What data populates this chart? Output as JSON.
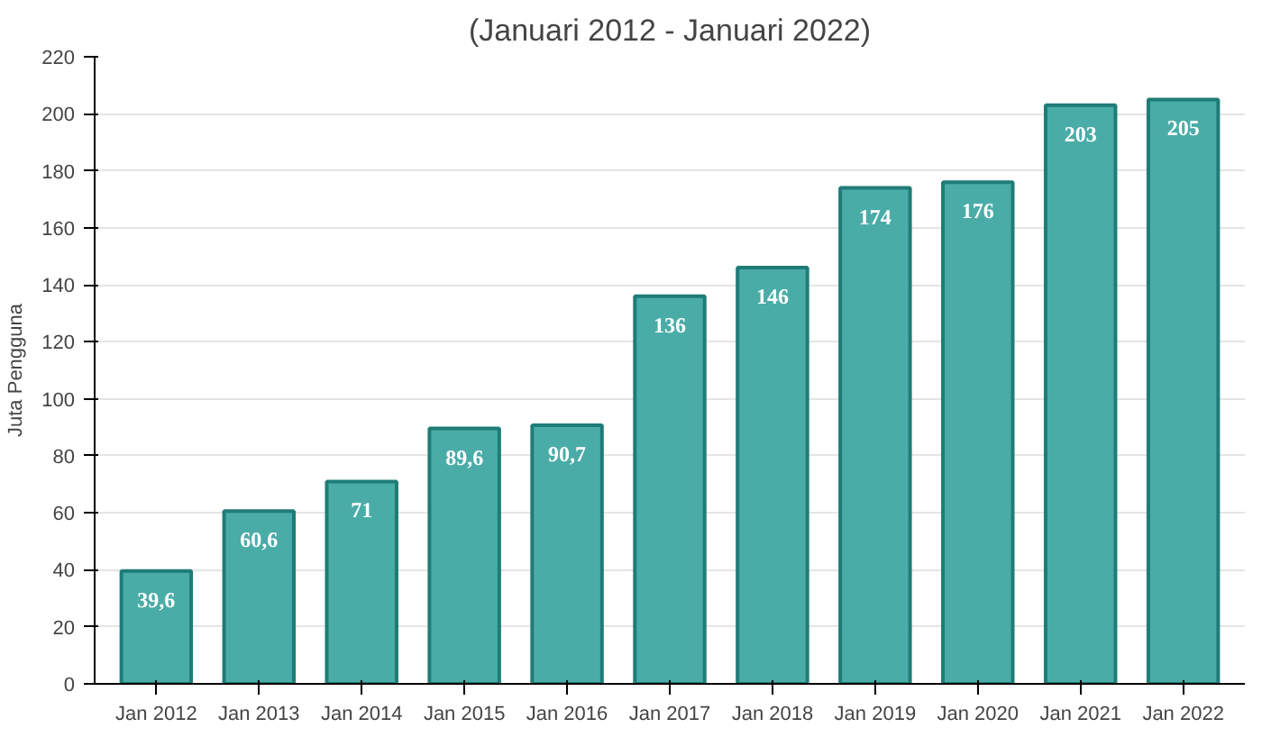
{
  "chart_data": {
    "type": "bar",
    "title": "(Januari 2012 - Januari 2022)",
    "ylabel": "Juta Pengguna",
    "categories": [
      "Jan 2012",
      "Jan 2013",
      "Jan 2014",
      "Jan 2015",
      "Jan 2016",
      "Jan 2017",
      "Jan 2018",
      "Jan 2019",
      "Jan 2020",
      "Jan 2021",
      "Jan 2022"
    ],
    "values": [
      39.6,
      60.6,
      71,
      89.6,
      90.7,
      136,
      146,
      174,
      176,
      203,
      205
    ],
    "value_labels": [
      "39,6",
      "60,6",
      "71",
      "89,6",
      "90,7",
      "136",
      "146",
      "174",
      "176",
      "203",
      "205"
    ],
    "color": "#4aaca7",
    "ylim": [
      0,
      220
    ],
    "yticks": [
      0,
      20,
      40,
      60,
      80,
      100,
      120,
      140,
      160,
      180,
      200,
      220
    ],
    "grid": "y"
  }
}
